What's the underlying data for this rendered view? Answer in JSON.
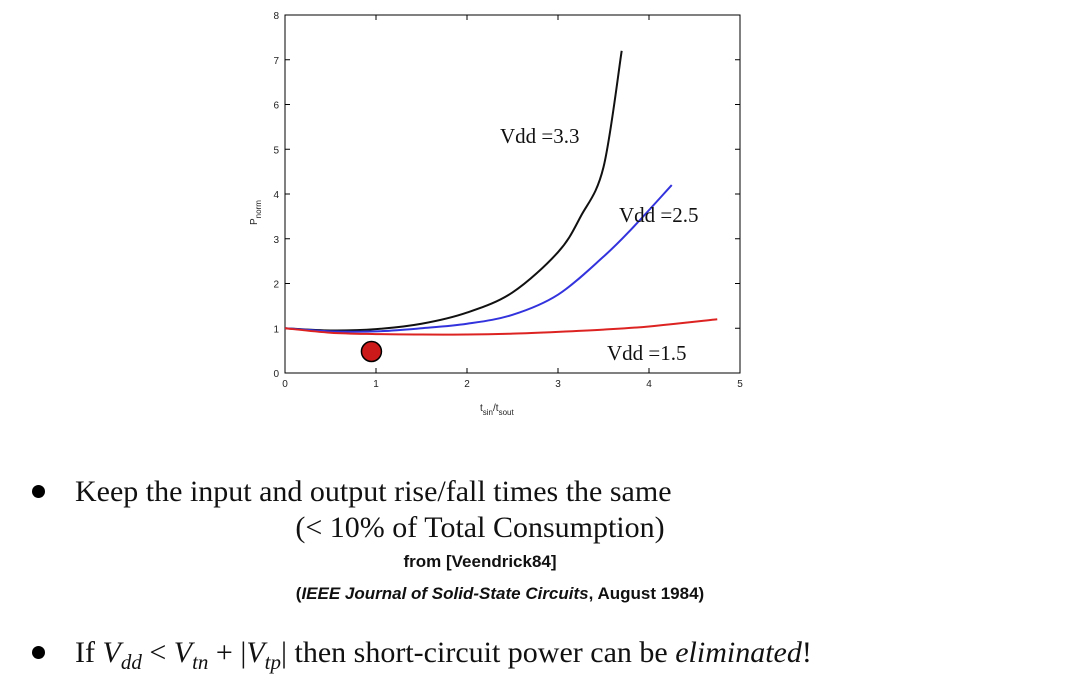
{
  "chart_data": {
    "type": "line",
    "xlabel": "t",
    "xlabel_sub1": "sin",
    "xlabel_mid": "/t",
    "xlabel_sub2": "sout",
    "ylabel": "P",
    "ylabel_sub": "norm",
    "xlim": [
      0,
      5
    ],
    "ylim": [
      0,
      8
    ],
    "xticks": [
      0,
      1,
      2,
      3,
      4,
      5
    ],
    "yticks": [
      0,
      1,
      2,
      3,
      4,
      5,
      6,
      7,
      8
    ],
    "grid": false,
    "series": [
      {
        "name": "Vdd =3.3",
        "color": "#111111",
        "x": [
          0,
          0.5,
          1.0,
          1.5,
          2.0,
          2.5,
          3.0,
          3.25,
          3.5,
          3.7
        ],
        "y": [
          1.0,
          0.95,
          0.98,
          1.1,
          1.35,
          1.8,
          2.7,
          3.5,
          4.6,
          7.2
        ]
      },
      {
        "name": "Vdd =2.5",
        "color": "#3333dd",
        "x": [
          0,
          0.5,
          1.0,
          1.5,
          2.0,
          2.5,
          3.0,
          3.5,
          3.8,
          4.25
        ],
        "y": [
          1.0,
          0.93,
          0.93,
          1.0,
          1.1,
          1.3,
          1.75,
          2.6,
          3.2,
          4.2
        ]
      },
      {
        "name": "Vdd =1.5",
        "color": "#dd2222",
        "x": [
          0,
          0.5,
          1.0,
          1.5,
          2.0,
          2.5,
          3.0,
          3.5,
          4.0,
          4.75
        ],
        "y": [
          1.0,
          0.9,
          0.87,
          0.86,
          0.86,
          0.88,
          0.92,
          0.97,
          1.04,
          1.2
        ]
      }
    ],
    "marker": {
      "x": 0.95,
      "y": 0.48,
      "color": "#cc1a1a"
    }
  },
  "bullets": {
    "b1_text": "Keep the input and output rise/fall times the same",
    "b1_sub": "(< 10% of Total Consumption)",
    "source": "from [Veendrick84]",
    "citation_italic": "IEEE Journal of Solid-State Circuits",
    "citation_open": "(",
    "citation_rest": ", August 1984)",
    "b2_if": "If ",
    "b2_V": "V",
    "b2_dd": "dd",
    "b2_lt": " < ",
    "b2_tn": "tn",
    "b2_plus": " + ",
    "b2_bar": "|",
    "b2_tp": "tp",
    "b2_then": " then short-circuit power can be ",
    "b2_elim": "eliminated",
    "b2_bang": "!"
  }
}
